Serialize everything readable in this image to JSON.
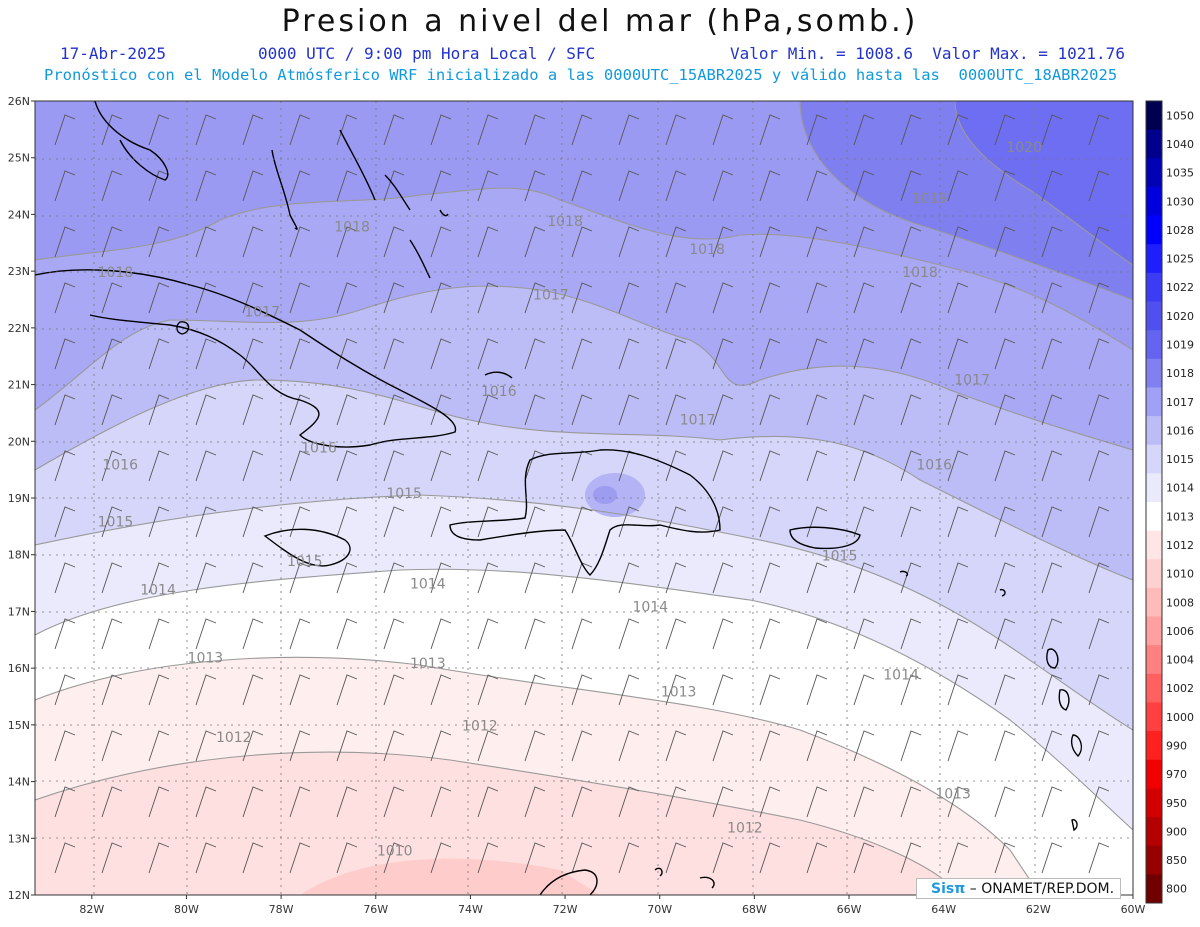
{
  "title": "Presion a nivel del mar (hPa,somb.)",
  "header": {
    "date": "17-Abr-2025",
    "time": "0000 UTC / 9:00 pm Hora Local / SFC",
    "min_max": "Valor Min. = 1008.6  Valor Max. = 1021.76",
    "model_line": "Pronóstico con el Modelo Atmósferico WRF inicializado a las 0000UTC_15ABR2025 y válido hasta las  0000UTC_18ABR2025"
  },
  "axes": {
    "lat_labels": [
      "26N",
      "25N",
      "24N",
      "23N",
      "22N",
      "21N",
      "20N",
      "19N",
      "18N",
      "17N",
      "16N",
      "15N",
      "14N",
      "13N",
      "12N"
    ],
    "lon_labels": [
      "82W",
      "80W",
      "78W",
      "76W",
      "74W",
      "72W",
      "70W",
      "68W",
      "66W",
      "64W",
      "62W",
      "60W"
    ],
    "lat_range": [
      12,
      26
    ],
    "lon_range": [
      -83.2,
      -60
    ]
  },
  "isobars": {
    "labels": [
      {
        "text": "1018",
        "lon": -76.5,
        "lat": 23.7
      },
      {
        "text": "1018",
        "lon": -81.5,
        "lat": 22.9
      },
      {
        "text": "1018",
        "lon": -72.0,
        "lat": 23.8
      },
      {
        "text": "1018",
        "lon": -69.0,
        "lat": 23.3
      },
      {
        "text": "1018",
        "lon": -64.5,
        "lat": 22.9
      },
      {
        "text": "1019",
        "lon": -64.3,
        "lat": 24.2
      },
      {
        "text": "1020",
        "lon": -62.3,
        "lat": 25.1
      },
      {
        "text": "1017",
        "lon": -78.4,
        "lat": 22.2
      },
      {
        "text": "1017",
        "lon": -72.3,
        "lat": 22.5
      },
      {
        "text": "1017",
        "lon": -63.4,
        "lat": 21.0
      },
      {
        "text": "1017",
        "lon": -69.2,
        "lat": 20.3
      },
      {
        "text": "1016",
        "lon": -73.4,
        "lat": 20.8
      },
      {
        "text": "1016",
        "lon": -77.2,
        "lat": 19.8
      },
      {
        "text": "1016",
        "lon": -81.4,
        "lat": 19.5
      },
      {
        "text": "1016",
        "lon": -64.2,
        "lat": 19.5
      },
      {
        "text": "1015",
        "lon": -81.5,
        "lat": 18.5
      },
      {
        "text": "1015",
        "lon": -75.4,
        "lat": 19.0
      },
      {
        "text": "1015",
        "lon": -77.5,
        "lat": 17.8
      },
      {
        "text": "1015",
        "lon": -66.2,
        "lat": 17.9
      },
      {
        "text": "1014",
        "lon": -80.6,
        "lat": 17.3
      },
      {
        "text": "1014",
        "lon": -74.9,
        "lat": 17.4
      },
      {
        "text": "1014",
        "lon": -70.2,
        "lat": 17.0
      },
      {
        "text": "1014",
        "lon": -64.9,
        "lat": 15.8
      },
      {
        "text": "1013",
        "lon": -79.6,
        "lat": 16.1
      },
      {
        "text": "1013",
        "lon": -74.9,
        "lat": 16.0
      },
      {
        "text": "1013",
        "lon": -69.6,
        "lat": 15.5
      },
      {
        "text": "1013",
        "lon": -63.8,
        "lat": 13.7
      },
      {
        "text": "1012",
        "lon": -79.0,
        "lat": 14.7
      },
      {
        "text": "1012",
        "lon": -73.8,
        "lat": 14.9
      },
      {
        "text": "1012",
        "lon": -68.2,
        "lat": 13.1
      },
      {
        "text": "1010",
        "lon": -75.6,
        "lat": 12.7
      }
    ]
  },
  "colorbar": {
    "levels": [
      "1050",
      "1040",
      "1035",
      "1030",
      "1028",
      "1025",
      "1022",
      "1020",
      "1019",
      "1018",
      "1017",
      "1016",
      "1015",
      "1014",
      "1013",
      "1012",
      "1010",
      "1008",
      "1006",
      "1004",
      "1002",
      "1000",
      "990",
      "970",
      "950",
      "900",
      "850",
      "800"
    ],
    "colors": [
      "#000050",
      "#00008c",
      "#0000b4",
      "#0000dc",
      "#0000ff",
      "#1e1eff",
      "#3c3cf5",
      "#5050f0",
      "#6464f0",
      "#8080f2",
      "#a0a0f5",
      "#bcbcf7",
      "#d6d6fa",
      "#eaeafc",
      "#ffffff",
      "#ffe6e6",
      "#ffd0d0",
      "#ffbaba",
      "#ffa0a0",
      "#ff8080",
      "#ff6060",
      "#ff4040",
      "#ff2020",
      "#f00000",
      "#d20000",
      "#b40000",
      "#960000",
      "#700000"
    ]
  },
  "watermark": {
    "brand": "Sisπ",
    "text": "– ONAMET/REP.DOM."
  }
}
